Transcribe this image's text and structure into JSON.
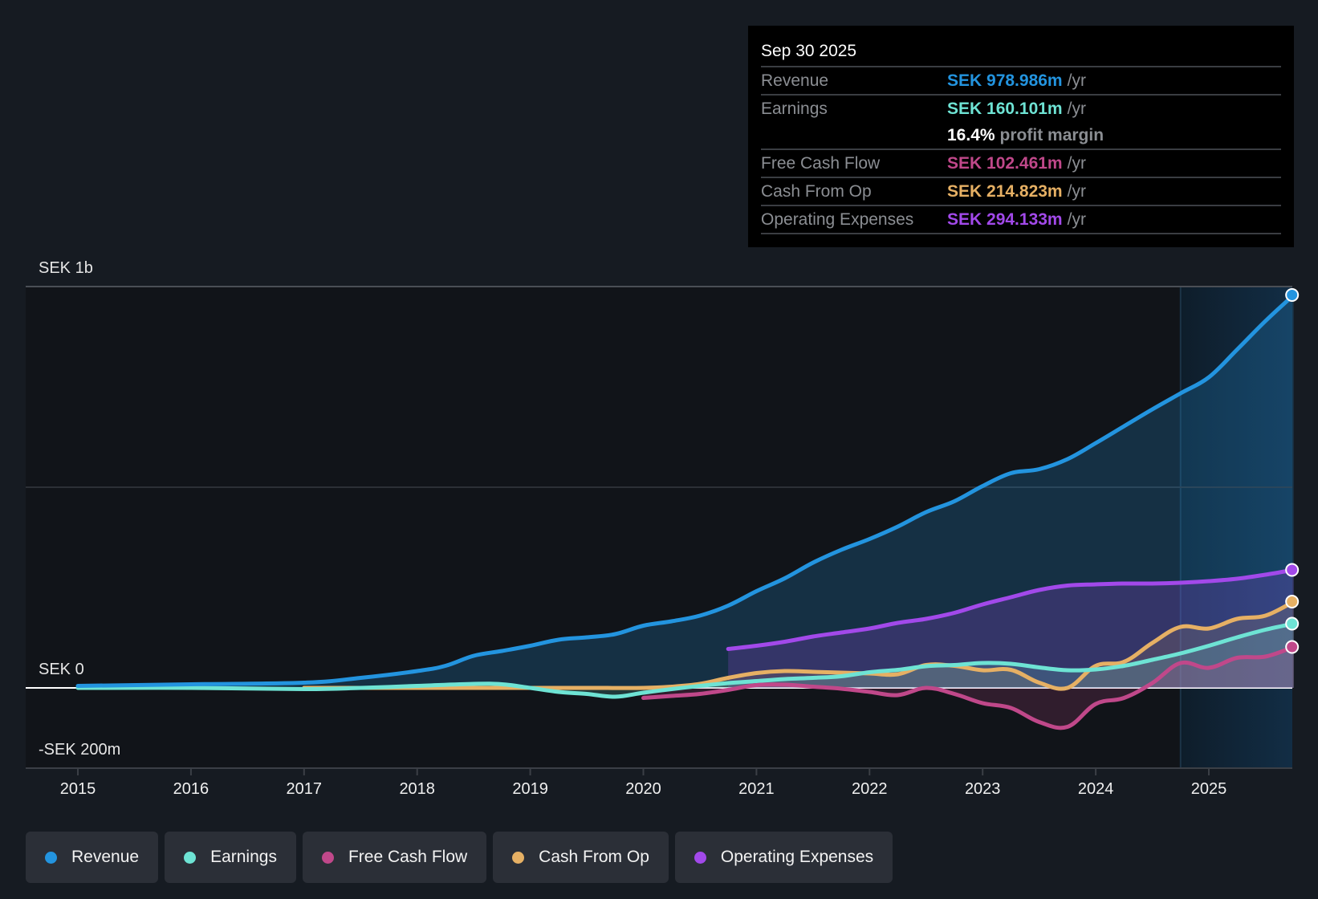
{
  "tooltip": {
    "date": "Sep 30 2025",
    "rows": [
      {
        "label": "Revenue",
        "value": "SEK 978.986m",
        "unit": "/yr",
        "color": "#2394df"
      },
      {
        "label": "Earnings",
        "value": "SEK 160.101m",
        "unit": "/yr",
        "color": "#6ee3d4"
      },
      {
        "label": "Free Cash Flow",
        "value": "SEK 102.461m",
        "unit": "/yr",
        "color": "#c0488a"
      },
      {
        "label": "Cash From Op",
        "value": "SEK 214.823m",
        "unit": "/yr",
        "color": "#e6b064"
      },
      {
        "label": "Operating Expenses",
        "value": "SEK 294.133m",
        "unit": "/yr",
        "color": "#a249ea"
      }
    ],
    "profit_margin_value": "16.4%",
    "profit_margin_text": "profit margin"
  },
  "legend": [
    {
      "label": "Revenue",
      "color": "#2394df"
    },
    {
      "label": "Earnings",
      "color": "#6ee3d4"
    },
    {
      "label": "Free Cash Flow",
      "color": "#c0488a"
    },
    {
      "label": "Cash From Op",
      "color": "#e6b064"
    },
    {
      "label": "Operating Expenses",
      "color": "#a249ea"
    }
  ],
  "chart_data": {
    "type": "area",
    "title": "",
    "xlabel": "",
    "ylabel": "",
    "ylim": [
      -200,
      1000
    ],
    "xlim": [
      2014.55,
      2025.78
    ],
    "y_tick_labels": [
      {
        "value": 1000,
        "label": "SEK 1b"
      },
      {
        "value": 0,
        "label": "SEK 0"
      },
      {
        "value": -200,
        "label": "-SEK 200m"
      }
    ],
    "y_gridlines": [
      1000,
      500,
      0
    ],
    "x_ticks": [
      2015,
      2016,
      2017,
      2018,
      2019,
      2020,
      2021,
      2022,
      2023,
      2024,
      2025
    ],
    "x_tick_labels": [
      "2015",
      "2016",
      "2017",
      "2018",
      "2019",
      "2020",
      "2021",
      "2022",
      "2023",
      "2024",
      "2025"
    ],
    "highlight_from": 2024.75,
    "grid": true,
    "legend_position": "bottom-left",
    "units": "SEK m",
    "series": [
      {
        "name": "Revenue",
        "color": "#2394df",
        "fill": true,
        "x": [
          2015,
          2016,
          2017,
          2017.5,
          2018,
          2018.25,
          2018.5,
          2018.75,
          2019,
          2019.25,
          2019.5,
          2019.75,
          2020,
          2020.25,
          2020.5,
          2020.75,
          2021,
          2021.25,
          2021.5,
          2021.75,
          2022,
          2022.25,
          2022.5,
          2022.75,
          2023,
          2023.25,
          2023.5,
          2023.75,
          2024,
          2024.25,
          2024.5,
          2024.75,
          2025,
          2025.25,
          2025.5,
          2025.75
        ],
        "values": [
          5,
          9,
          13,
          25,
          42,
          55,
          80,
          92,
          105,
          120,
          126,
          134,
          155,
          166,
          180,
          205,
          241,
          273,
          312,
          344,
          371,
          402,
          438,
          465,
          503,
          535,
          545,
          570,
          610,
          652,
          694,
          734,
          774,
          843,
          914,
          979
        ]
      },
      {
        "name": "Earnings",
        "color": "#6ee3d4",
        "fill": true,
        "x": [
          2015,
          2016,
          2017,
          2017.5,
          2018,
          2018.5,
          2018.75,
          2019,
          2019.25,
          2019.5,
          2019.75,
          2020,
          2020.25,
          2020.5,
          2020.75,
          2021,
          2021.25,
          2021.5,
          2021.75,
          2022,
          2022.25,
          2022.5,
          2022.75,
          2023,
          2023.25,
          2023.5,
          2023.75,
          2024,
          2024.25,
          2024.5,
          2024.75,
          2025,
          2025.25,
          2025.5,
          2025.75
        ],
        "values": [
          0,
          0,
          -3,
          0,
          5,
          10,
          9,
          0,
          -10,
          -15,
          -22,
          -12,
          -3,
          5,
          12,
          17,
          22,
          25,
          29,
          39,
          45,
          54,
          57,
          62,
          60,
          51,
          44,
          46,
          55,
          70,
          86,
          105,
          126,
          145,
          160
        ]
      },
      {
        "name": "Free Cash Flow",
        "color": "#c0488a",
        "fill": true,
        "x": [
          2020,
          2020.25,
          2020.5,
          2020.75,
          2021,
          2021.25,
          2021.5,
          2021.75,
          2022,
          2022.25,
          2022.5,
          2022.75,
          2023,
          2023.25,
          2023.5,
          2023.75,
          2024,
          2024.25,
          2024.5,
          2024.75,
          2025,
          2025.25,
          2025.5,
          2025.75
        ],
        "values": [
          -25,
          -20,
          -15,
          -5,
          7,
          8,
          3,
          -2,
          -10,
          -18,
          0,
          -15,
          -38,
          -50,
          -85,
          -97,
          -40,
          -25,
          12,
          62,
          50,
          75,
          78,
          102
        ]
      },
      {
        "name": "Cash From Op",
        "color": "#e6b064",
        "fill": true,
        "x": [
          2017,
          2017.5,
          2018,
          2018.5,
          2019,
          2019.5,
          2020,
          2020.25,
          2020.5,
          2020.75,
          2021,
          2021.25,
          2021.5,
          2021.75,
          2022,
          2022.25,
          2022.5,
          2022.75,
          2023,
          2023.25,
          2023.5,
          2023.75,
          2024,
          2024.25,
          2024.5,
          2024.75,
          2025,
          2025.25,
          2025.5,
          2025.75
        ],
        "values": [
          0,
          0,
          0,
          0,
          0,
          0,
          0,
          3,
          10,
          25,
          37,
          42,
          40,
          38,
          36,
          34,
          57,
          55,
          44,
          45,
          13,
          0,
          55,
          65,
          112,
          152,
          148,
          172,
          180,
          215
        ]
      },
      {
        "name": "Operating Expenses",
        "color": "#a249ea",
        "fill": true,
        "x": [
          2020.75,
          2021,
          2021.25,
          2021.5,
          2021.75,
          2022,
          2022.25,
          2022.5,
          2022.75,
          2023,
          2023.25,
          2023.5,
          2023.75,
          2024,
          2024.25,
          2024.5,
          2024.75,
          2025,
          2025.25,
          2025.5,
          2025.75
        ],
        "values": [
          97,
          105,
          115,
          128,
          138,
          148,
          162,
          172,
          187,
          208,
          226,
          244,
          255,
          258,
          260,
          260,
          262,
          266,
          272,
          282,
          294
        ]
      }
    ]
  }
}
